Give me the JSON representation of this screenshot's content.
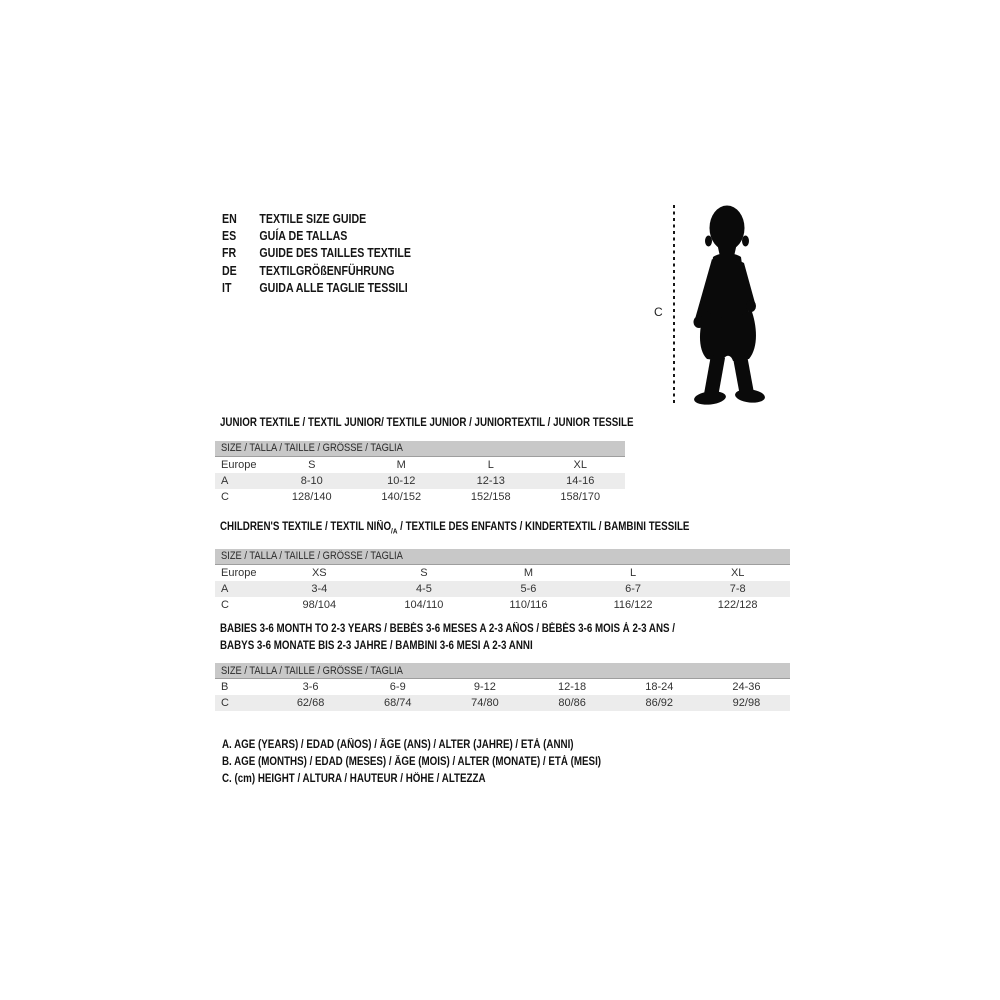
{
  "colors": {
    "background": "#ffffff",
    "header_bar": "#c8c8c8",
    "alt_row": "#ececec",
    "text": "#1a1a1a",
    "silhouette": "#0a0a0a"
  },
  "languages": [
    {
      "code": "EN",
      "label": "TEXTILE SIZE GUIDE"
    },
    {
      "code": "ES",
      "label": "GUÍA DE TALLAS"
    },
    {
      "code": "FR",
      "label": "GUIDE DES TAILLES TEXTILE"
    },
    {
      "code": "DE",
      "label": "TEXTILGRÖßENFÜHRUNG"
    },
    {
      "code": "IT",
      "label": "GUIDA ALLE TAGLIE TESSILI"
    }
  ],
  "figure": {
    "icon": "toddler-silhouette",
    "label": "C"
  },
  "tables": [
    {
      "title_lines": [
        [
          {
            "text": "JUNIOR TEXTILE / TEXTIL JUNIOR/ TEXTILE JUNIOR / JUNIORTEXTIL / JUNIOR TESSILE"
          }
        ]
      ],
      "size_header": "SIZE / TALLA / TAILLE / GRÖSSE / TAGLIA",
      "rows": [
        {
          "label": "Europe",
          "values": [
            "S",
            "M",
            "L",
            "XL"
          ]
        },
        {
          "label": "A",
          "values": [
            "8-10",
            "10-12",
            "12-13",
            "14-16"
          ]
        },
        {
          "label": "C",
          "values": [
            "128/140",
            "140/152",
            "152/158",
            "158/170"
          ]
        }
      ]
    },
    {
      "title_lines": [
        [
          {
            "text": "CHILDREN'S TEXTILE / TEXTIL NIÑO"
          },
          {
            "text": "/A",
            "sub": true
          },
          {
            "text": " / TEXTILE DES ENFANTS / KINDERTEXTIL / BAMBINI TESSILE"
          }
        ]
      ],
      "size_header": "SIZE / TALLA / TAILLE / GRÖSSE / TAGLIA",
      "rows": [
        {
          "label": "Europe",
          "values": [
            "XS",
            "S",
            "M",
            "L",
            "XL"
          ]
        },
        {
          "label": "A",
          "values": [
            "3-4",
            "4-5",
            "5-6",
            "6-7",
            "7-8"
          ]
        },
        {
          "label": "C",
          "values": [
            "98/104",
            "104/110",
            "110/116",
            "116/122",
            "122/128"
          ]
        }
      ]
    },
    {
      "title_lines": [
        [
          {
            "text": "BABIES 3-6 MONTH TO 2-3 YEARS / BEBÉS 3-6 MESES A 2-3 AÑOS / BÉBÉS 3-6 MOIS À 2-3 ANS /"
          }
        ],
        [
          {
            "text": "BABYS 3-6 MONATE BIS 2-3 JAHRE / BAMBINI 3-6 MESI A 2-3 ANNI"
          }
        ]
      ],
      "size_header": "SIZE / TALLA / TAILLE / GRÖSSE / TAGLIA",
      "rows": [
        {
          "label": "B",
          "values": [
            "3-6",
            "6-9",
            "9-12",
            "12-18",
            "18-24",
            "24-36"
          ]
        },
        {
          "label": "C",
          "values": [
            "62/68",
            "68/74",
            "74/80",
            "80/86",
            "86/92",
            "92/98"
          ]
        }
      ]
    }
  ],
  "legend": [
    "A. AGE (YEARS) / EDAD (AÑOS) / ÂGE (ANS) / ALTER (JAHRE) / ETÀ (ANNI)",
    "B. AGE (MONTHS) / EDAD (MESES) / ÂGE (MOIS) / ALTER (MONATE) / ETÀ (MESI)",
    "C. (cm) HEIGHT / ALTURA / HAUTEUR / HÖHE / ALTEZZA"
  ]
}
